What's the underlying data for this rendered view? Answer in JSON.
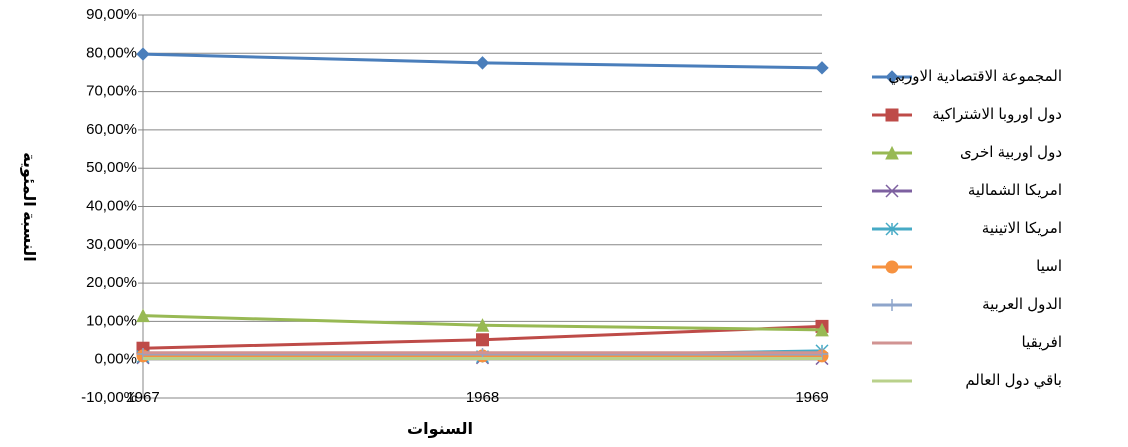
{
  "chart_data": {
    "type": "line",
    "x_label": "السنوات",
    "y_label": "النسبة المئوية",
    "categories": [
      "1967",
      "1968",
      "1969"
    ],
    "series": [
      {
        "name": "المجموعة الاقتصادية الاوربي",
        "color": "#4a7ebb",
        "marker": "diamond",
        "values": [
          79.8,
          77.5,
          76.2
        ]
      },
      {
        "name": "دول اوروبا الاشتراكية",
        "color": "#be4b48",
        "marker": "square",
        "values": [
          3,
          5.2,
          8.7
        ]
      },
      {
        "name": "دول اوربية اخرى",
        "color": "#98b954",
        "marker": "triangle",
        "values": [
          11.5,
          9,
          7.8
        ]
      },
      {
        "name": "امريكا الشمالية",
        "color": "#7d60a0",
        "marker": "x",
        "values": [
          0.5,
          0.5,
          0.3
        ]
      },
      {
        "name": "امريكا الاتينية",
        "color": "#46aac5",
        "marker": "star",
        "values": [
          0.8,
          0.8,
          2.3
        ]
      },
      {
        "name": "اسيا",
        "color": "#f69240",
        "marker": "circle",
        "values": [
          1,
          1,
          1
        ]
      },
      {
        "name": "الدول العربية",
        "color": "#8ea5cb",
        "marker": "plus",
        "values": [
          1.5,
          1.5,
          1.5
        ]
      },
      {
        "name": "افريقيا",
        "color": "#d19392",
        "marker": "none",
        "values": [
          1.8,
          1.8,
          1.8
        ]
      },
      {
        "name": "باقي دول العالم",
        "color": "#b9d18b",
        "marker": "none",
        "values": [
          0.3,
          0.3,
          0.3
        ]
      }
    ],
    "ylim": [
      -10,
      90
    ],
    "yticks": [
      {
        "value": -10,
        "label": "-10,00%"
      },
      {
        "value": 0,
        "label": "0,00%"
      },
      {
        "value": 10,
        "label": "10,00%"
      },
      {
        "value": 20,
        "label": "20,00%"
      },
      {
        "value": 30,
        "label": "30,00%"
      },
      {
        "value": 40,
        "label": "40,00%"
      },
      {
        "value": 50,
        "label": "50,00%"
      },
      {
        "value": 60,
        "label": "60,00%"
      },
      {
        "value": 70,
        "label": "70,00%"
      },
      {
        "value": 80,
        "label": "80,00%"
      },
      {
        "value": 90,
        "label": "90,00%"
      }
    ],
    "grid": true,
    "legend": "right"
  }
}
